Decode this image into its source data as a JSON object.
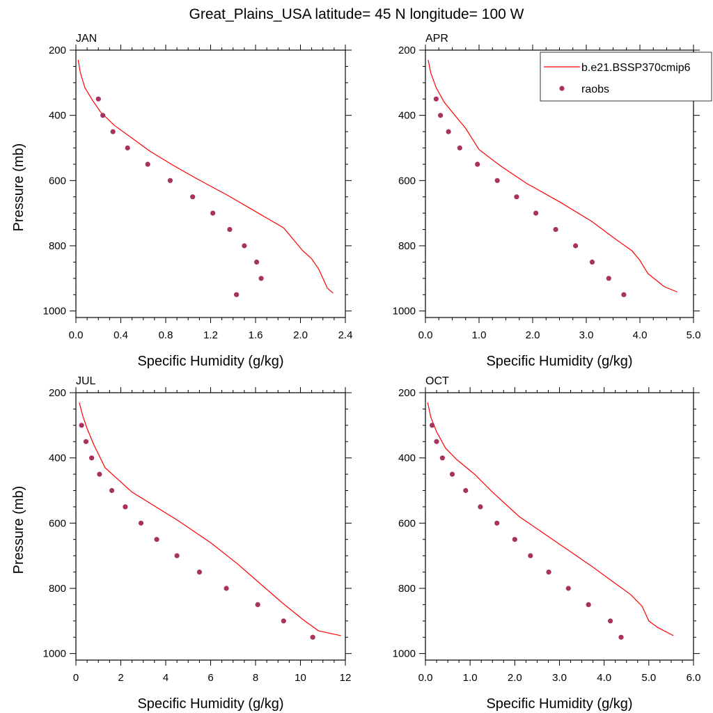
{
  "title": "Great_Plains_USA  latitude= 45 N longitude= 100 W",
  "colors": {
    "model": "#ff0000",
    "obs": "#a8325e"
  },
  "legend": {
    "model_label": "b.e21.BSSP370cmip6",
    "obs_label": "raobs"
  },
  "chart_data": [
    {
      "type": "line",
      "panel": "JAN",
      "xlabel": "Specific Humidity (g/kg)",
      "ylabel": "Pressure (mb)",
      "xlim": [
        0,
        2.4
      ],
      "xticks": [
        0,
        0.4,
        0.8,
        1.2,
        1.6,
        2.0,
        2.4
      ],
      "xtick_labels": [
        "0.0",
        "0.4",
        "0.8",
        "1.2",
        "1.6",
        "2.0",
        "2.4"
      ],
      "ylim": [
        1020,
        200
      ],
      "yticks": [
        200,
        400,
        600,
        800,
        1000
      ],
      "series": [
        {
          "name": "b.e21.BSSP370cmip6",
          "kind": "line",
          "x": [
            0.02,
            0.04,
            0.08,
            0.15,
            0.22,
            0.34,
            0.5,
            0.66,
            0.85,
            1.08,
            1.35,
            1.6,
            1.85,
            2.02,
            2.1,
            2.16,
            2.2,
            2.24,
            2.29
          ],
          "y": [
            230,
            270,
            315,
            355,
            390,
            430,
            470,
            510,
            550,
            595,
            645,
            695,
            745,
            815,
            840,
            870,
            900,
            930,
            945
          ]
        },
        {
          "name": "raobs",
          "kind": "scatter",
          "x": [
            0.2,
            0.24,
            0.33,
            0.46,
            0.64,
            0.84,
            1.04,
            1.22,
            1.37,
            1.5,
            1.61,
            1.65,
            1.43
          ],
          "y": [
            350,
            400,
            450,
            500,
            550,
            600,
            650,
            700,
            750,
            800,
            850,
            900,
            950
          ]
        }
      ]
    },
    {
      "type": "line",
      "panel": "APR",
      "xlabel": "Specific Humidity (g/kg)",
      "ylabel": "",
      "xlim": [
        0,
        5.0
      ],
      "xticks": [
        0,
        1,
        2,
        3,
        4,
        5
      ],
      "xtick_labels": [
        "0.0",
        "1.0",
        "2.0",
        "3.0",
        "4.0",
        "5.0"
      ],
      "ylim": [
        1020,
        200
      ],
      "yticks": [
        200,
        400,
        600,
        800,
        1000
      ],
      "series": [
        {
          "name": "b.e21.BSSP370cmip6",
          "kind": "line",
          "x": [
            0.05,
            0.1,
            0.2,
            0.35,
            0.55,
            0.75,
            1.0,
            1.4,
            1.9,
            2.5,
            3.1,
            3.55,
            3.85,
            4.0,
            4.15,
            4.3,
            4.45,
            4.7
          ],
          "y": [
            230,
            270,
            315,
            360,
            400,
            440,
            505,
            555,
            610,
            665,
            725,
            780,
            815,
            845,
            885,
            905,
            925,
            942
          ]
        },
        {
          "name": "raobs",
          "kind": "scatter",
          "x": [
            0.2,
            0.28,
            0.43,
            0.64,
            0.97,
            1.34,
            1.7,
            2.06,
            2.43,
            2.8,
            3.11,
            3.42,
            3.7
          ],
          "y": [
            350,
            400,
            450,
            500,
            550,
            600,
            650,
            700,
            750,
            800,
            850,
            900,
            950
          ]
        }
      ]
    },
    {
      "type": "line",
      "panel": "JUL",
      "xlabel": "Specific Humidity (g/kg)",
      "ylabel": "Pressure (mb)",
      "xlim": [
        0,
        12
      ],
      "xticks": [
        0,
        2,
        4,
        6,
        8,
        10,
        12
      ],
      "xtick_labels": [
        "0",
        "2",
        "4",
        "6",
        "8",
        "10",
        "12"
      ],
      "ylim": [
        1020,
        200
      ],
      "yticks": [
        200,
        400,
        600,
        800,
        1000
      ],
      "series": [
        {
          "name": "b.e21.BSSP370cmip6",
          "kind": "line",
          "x": [
            0.15,
            0.3,
            0.5,
            0.8,
            1.3,
            2.5,
            4.5,
            6.0,
            7.2,
            8.2,
            9.2,
            10.1,
            10.8,
            11.8
          ],
          "y": [
            230,
            270,
            310,
            360,
            430,
            505,
            590,
            660,
            725,
            785,
            845,
            895,
            930,
            945
          ]
        },
        {
          "name": "raobs",
          "kind": "scatter",
          "x": [
            0.25,
            0.45,
            0.7,
            1.05,
            1.6,
            2.2,
            2.9,
            3.6,
            4.5,
            5.5,
            6.7,
            8.1,
            9.25,
            10.55
          ],
          "y": [
            300,
            350,
            400,
            450,
            500,
            550,
            600,
            650,
            700,
            750,
            800,
            850,
            900,
            950
          ]
        }
      ]
    },
    {
      "type": "line",
      "panel": "OCT",
      "xlabel": "Specific Humidity (g/kg)",
      "ylabel": "",
      "xlim": [
        0,
        6.0
      ],
      "xticks": [
        0,
        1,
        2,
        3,
        4,
        5,
        6
      ],
      "xtick_labels": [
        "0.0",
        "1.0",
        "2.0",
        "3.0",
        "4.0",
        "5.0",
        "6.0"
      ],
      "ylim": [
        1020,
        200
      ],
      "yticks": [
        200,
        400,
        600,
        800,
        1000
      ],
      "series": [
        {
          "name": "b.e21.BSSP370cmip6",
          "kind": "line",
          "x": [
            0.05,
            0.12,
            0.25,
            0.45,
            0.7,
            1.1,
            1.5,
            2.1,
            2.9,
            3.7,
            4.2,
            4.6,
            4.85,
            5.0,
            5.2,
            5.55
          ],
          "y": [
            230,
            275,
            320,
            370,
            405,
            450,
            505,
            580,
            655,
            730,
            780,
            820,
            855,
            900,
            920,
            945
          ]
        },
        {
          "name": "raobs",
          "kind": "scatter",
          "x": [
            0.15,
            0.25,
            0.38,
            0.6,
            0.9,
            1.23,
            1.6,
            2.0,
            2.35,
            2.76,
            3.2,
            3.65,
            4.14,
            4.38
          ],
          "y": [
            300,
            350,
            400,
            450,
            500,
            550,
            600,
            650,
            700,
            750,
            800,
            850,
            900,
            950
          ]
        }
      ]
    }
  ]
}
